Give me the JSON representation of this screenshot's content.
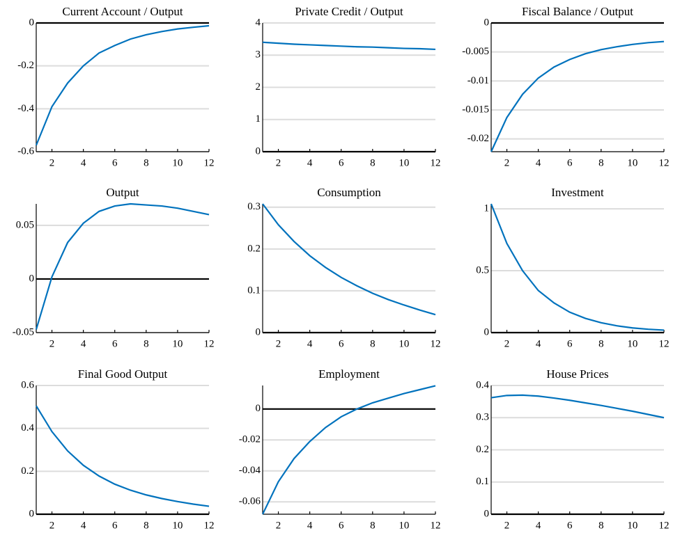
{
  "chart_data": [
    {
      "type": "line",
      "title": "Current Account / Output",
      "x": [
        1,
        2,
        3,
        4,
        5,
        6,
        7,
        8,
        9,
        10,
        11,
        12
      ],
      "values": [
        -0.57,
        -0.39,
        -0.28,
        -0.2,
        -0.14,
        -0.105,
        -0.075,
        -0.055,
        -0.04,
        -0.028,
        -0.02,
        -0.013
      ],
      "color": "#0072bd",
      "xlim": [
        1,
        12
      ],
      "xticks": [
        2,
        4,
        6,
        8,
        10,
        12
      ],
      "ylim": [
        -0.6,
        0
      ],
      "yticks": [
        -0.6,
        -0.4,
        -0.2,
        0
      ],
      "grid": true
    },
    {
      "type": "line",
      "title": "Private Credit / Output",
      "x": [
        1,
        2,
        3,
        4,
        5,
        6,
        7,
        8,
        9,
        10,
        11,
        12
      ],
      "values": [
        3.4,
        3.37,
        3.34,
        3.32,
        3.3,
        3.28,
        3.26,
        3.25,
        3.23,
        3.21,
        3.2,
        3.18
      ],
      "color": "#0072bd",
      "xlim": [
        1,
        12
      ],
      "xticks": [
        2,
        4,
        6,
        8,
        10,
        12
      ],
      "ylim": [
        0,
        4
      ],
      "yticks": [
        0,
        1,
        2,
        3,
        4
      ],
      "grid": true
    },
    {
      "type": "line",
      "title": "Fiscal Balance / Output",
      "x": [
        1,
        2,
        3,
        4,
        5,
        6,
        7,
        8,
        9,
        10,
        11,
        12
      ],
      "values": [
        -0.0222,
        -0.0163,
        -0.0123,
        -0.0095,
        -0.0076,
        -0.0063,
        -0.0053,
        -0.0046,
        -0.0041,
        -0.0037,
        -0.0034,
        -0.0032
      ],
      "color": "#0072bd",
      "xlim": [
        1,
        12
      ],
      "xticks": [
        2,
        4,
        6,
        8,
        10,
        12
      ],
      "ylim": [
        -0.0222,
        0
      ],
      "yticks": [
        -0.02,
        -0.015,
        -0.01,
        -0.005,
        0
      ],
      "grid": true
    },
    {
      "type": "line",
      "title": "Output",
      "x": [
        1,
        2,
        3,
        4,
        5,
        6,
        7,
        8,
        9,
        10,
        11,
        12
      ],
      "values": [
        -0.047,
        0.002,
        0.034,
        0.052,
        0.063,
        0.068,
        0.07,
        0.069,
        0.068,
        0.066,
        0.063,
        0.06
      ],
      "color": "#0072bd",
      "xlim": [
        1,
        12
      ],
      "xticks": [
        2,
        4,
        6,
        8,
        10,
        12
      ],
      "ylim": [
        -0.05,
        0.07
      ],
      "yticks": [
        -0.05,
        0,
        0.05
      ],
      "grid": true
    },
    {
      "type": "line",
      "title": "Consumption",
      "x": [
        1,
        2,
        3,
        4,
        5,
        6,
        7,
        8,
        9,
        10,
        11,
        12
      ],
      "values": [
        0.308,
        0.258,
        0.218,
        0.184,
        0.156,
        0.132,
        0.112,
        0.094,
        0.079,
        0.066,
        0.054,
        0.043
      ],
      "color": "#0072bd",
      "xlim": [
        1,
        12
      ],
      "xticks": [
        2,
        4,
        6,
        8,
        10,
        12
      ],
      "ylim": [
        0,
        0.308
      ],
      "yticks": [
        0,
        0.1,
        0.2,
        0.3
      ],
      "grid": true
    },
    {
      "type": "line",
      "title": "Investment",
      "x": [
        1,
        2,
        3,
        4,
        5,
        6,
        7,
        8,
        9,
        10,
        11,
        12
      ],
      "values": [
        1.04,
        0.72,
        0.5,
        0.34,
        0.24,
        0.165,
        0.115,
        0.08,
        0.055,
        0.038,
        0.027,
        0.02
      ],
      "color": "#0072bd",
      "xlim": [
        1,
        12
      ],
      "xticks": [
        2,
        4,
        6,
        8,
        10,
        12
      ],
      "ylim": [
        0,
        1.04
      ],
      "yticks": [
        0,
        0.5,
        1
      ],
      "grid": true
    },
    {
      "type": "line",
      "title": "Final Good Output",
      "x": [
        1,
        2,
        3,
        4,
        5,
        6,
        7,
        8,
        9,
        10,
        11,
        12
      ],
      "values": [
        0.505,
        0.385,
        0.295,
        0.228,
        0.178,
        0.14,
        0.112,
        0.09,
        0.073,
        0.059,
        0.047,
        0.037
      ],
      "color": "#0072bd",
      "xlim": [
        1,
        12
      ],
      "xticks": [
        2,
        4,
        6,
        8,
        10,
        12
      ],
      "ylim": [
        0,
        0.6
      ],
      "yticks": [
        0,
        0.2,
        0.4,
        0.6
      ],
      "grid": true
    },
    {
      "type": "line",
      "title": "Employment",
      "x": [
        1,
        2,
        3,
        4,
        5,
        6,
        7,
        8,
        9,
        10,
        11,
        12
      ],
      "values": [
        -0.068,
        -0.047,
        -0.032,
        -0.021,
        -0.012,
        -0.005,
        0,
        0.004,
        0.007,
        0.01,
        0.0125,
        0.015
      ],
      "color": "#0072bd",
      "xlim": [
        1,
        12
      ],
      "xticks": [
        2,
        4,
        6,
        8,
        10,
        12
      ],
      "ylim": [
        -0.068,
        0.0152
      ],
      "yticks": [
        -0.06,
        -0.04,
        -0.02,
        0
      ],
      "grid": true
    },
    {
      "type": "line",
      "title": "House Prices",
      "x": [
        1,
        2,
        3,
        4,
        5,
        6,
        7,
        8,
        9,
        10,
        11,
        12
      ],
      "values": [
        0.362,
        0.369,
        0.37,
        0.367,
        0.361,
        0.354,
        0.346,
        0.338,
        0.329,
        0.32,
        0.31,
        0.3
      ],
      "color": "#0072bd",
      "xlim": [
        1,
        12
      ],
      "xticks": [
        2,
        4,
        6,
        8,
        10,
        12
      ],
      "ylim": [
        0,
        0.4
      ],
      "yticks": [
        0,
        0.1,
        0.2,
        0.3,
        0.4
      ],
      "grid": true
    }
  ]
}
